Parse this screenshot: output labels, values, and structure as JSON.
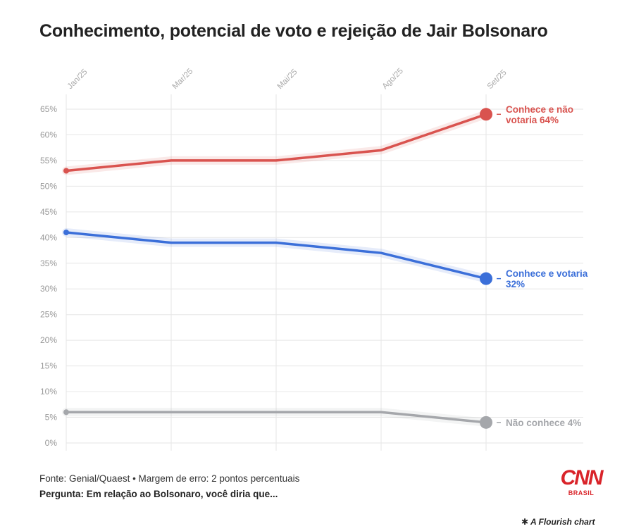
{
  "chart_data": {
    "type": "line",
    "title": "Conhecimento, potencial de voto e rejeição de Jair Bolsonaro",
    "categories": [
      "Jan/25",
      "Mar/25",
      "Mai/25",
      "Ago/25",
      "Set/25"
    ],
    "y_ticks": [
      "65%",
      "60%",
      "55%",
      "50%",
      "45%",
      "40%",
      "35%",
      "30%",
      "25%",
      "20%",
      "15%",
      "10%",
      "5%",
      "0%"
    ],
    "ylim": [
      0,
      65
    ],
    "series": [
      {
        "name": "Conhece e não votaria",
        "label_lines": [
          "Conhece e não",
          "votaria 64%"
        ],
        "values": [
          53,
          55,
          55,
          57,
          64
        ],
        "color": "#d9534f"
      },
      {
        "name": "Conhece e votaria",
        "label_lines": [
          "Conhece e votaria",
          "32%"
        ],
        "values": [
          41,
          39,
          39,
          37,
          32
        ],
        "color": "#3b6fd9"
      },
      {
        "name": "Não conhece",
        "label_lines": [
          "Não conhece 4%"
        ],
        "values": [
          6,
          6,
          6,
          6,
          4
        ],
        "color": "#a5a7ab"
      }
    ]
  },
  "footer": {
    "source": "Fonte: Genial/Quaest • Margem de erro: 2 pontos percentuais",
    "question": "Pergunta: Em relação ao Bolsonaro, você diria que..."
  },
  "logo": {
    "word": "CNN",
    "sub": "BRASIL"
  },
  "credit": "✱ A Flourish chart"
}
